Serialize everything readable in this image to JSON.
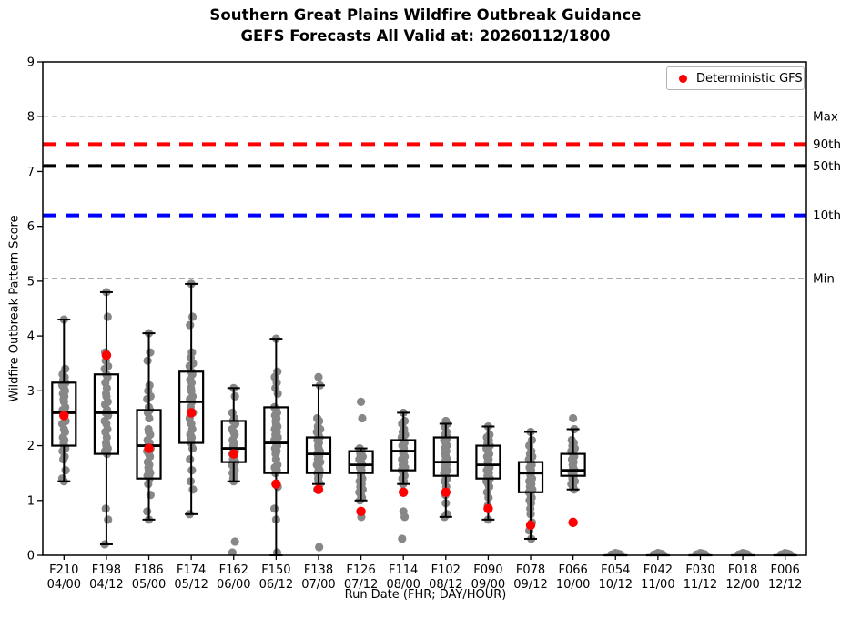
{
  "legend": {
    "label": "Deterministic GFS",
    "marker_color": "#ff0000"
  },
  "chart_data": {
    "type": "boxplot+scatter",
    "title": "Southern Great Plains Wildfire Outbreak Guidance",
    "subtitle": "GEFS Forecasts All Valid at: 20260112/1800",
    "xlabel": "Run Date (FHR; DAY/HOUR)",
    "ylabel": "Wildfire Outbreak Pattern Score",
    "ylim": [
      0,
      9
    ],
    "y_ticks": [
      0,
      1,
      2,
      3,
      4,
      5,
      6,
      7,
      8,
      9
    ],
    "grid": false,
    "legend_position": "upper right",
    "reference_lines": [
      {
        "label": "Max",
        "value": 8.0,
        "color": "#909090",
        "thick": false
      },
      {
        "label": "90th",
        "value": 7.5,
        "color": "#ff0000",
        "thick": true
      },
      {
        "label": "50th",
        "value": 7.1,
        "color": "#000000",
        "thick": true
      },
      {
        "label": "10th",
        "value": 6.2,
        "color": "#0000ff",
        "thick": true
      },
      {
        "label": "Min",
        "value": 5.05,
        "color": "#909090",
        "thick": false
      }
    ],
    "categories": [
      {
        "fhr": "F210",
        "date": "04/00"
      },
      {
        "fhr": "F198",
        "date": "04/12"
      },
      {
        "fhr": "F186",
        "date": "05/00"
      },
      {
        "fhr": "F174",
        "date": "05/12"
      },
      {
        "fhr": "F162",
        "date": "06/00"
      },
      {
        "fhr": "F150",
        "date": "06/12"
      },
      {
        "fhr": "F138",
        "date": "07/00"
      },
      {
        "fhr": "F126",
        "date": "07/12"
      },
      {
        "fhr": "F114",
        "date": "08/00"
      },
      {
        "fhr": "F102",
        "date": "08/12"
      },
      {
        "fhr": "F090",
        "date": "09/00"
      },
      {
        "fhr": "F078",
        "date": "09/12"
      },
      {
        "fhr": "F066",
        "date": "10/00"
      },
      {
        "fhr": "F054",
        "date": "10/12"
      },
      {
        "fhr": "F042",
        "date": "11/00"
      },
      {
        "fhr": "F030",
        "date": "11/12"
      },
      {
        "fhr": "F018",
        "date": "12/00"
      },
      {
        "fhr": "F006",
        "date": "12/12"
      }
    ],
    "boxes": [
      {
        "low": 1.35,
        "q1": 2.0,
        "median": 2.6,
        "q3": 3.15,
        "high": 4.3
      },
      {
        "low": 0.2,
        "q1": 1.85,
        "median": 2.6,
        "q3": 3.3,
        "high": 4.8
      },
      {
        "low": 0.65,
        "q1": 1.4,
        "median": 2.0,
        "q3": 2.65,
        "high": 4.05
      },
      {
        "low": 0.75,
        "q1": 2.05,
        "median": 2.8,
        "q3": 3.35,
        "high": 4.95
      },
      {
        "low": 1.35,
        "q1": 1.7,
        "median": 1.95,
        "q3": 2.45,
        "high": 3.05
      },
      {
        "low": 0.0,
        "q1": 1.5,
        "median": 2.05,
        "q3": 2.7,
        "high": 3.95
      },
      {
        "low": 1.3,
        "q1": 1.5,
        "median": 1.85,
        "q3": 2.15,
        "high": 3.1
      },
      {
        "low": 1.0,
        "q1": 1.5,
        "median": 1.65,
        "q3": 1.9,
        "high": 1.95
      },
      {
        "low": 1.3,
        "q1": 1.55,
        "median": 1.9,
        "q3": 2.1,
        "high": 2.6
      },
      {
        "low": 0.7,
        "q1": 1.45,
        "median": 1.7,
        "q3": 2.15,
        "high": 2.4
      },
      {
        "low": 0.65,
        "q1": 1.4,
        "median": 1.65,
        "q3": 2.0,
        "high": 2.35
      },
      {
        "low": 0.3,
        "q1": 1.15,
        "median": 1.5,
        "q3": 1.7,
        "high": 2.25
      },
      {
        "low": 1.2,
        "q1": 1.45,
        "median": 1.55,
        "q3": 1.85,
        "high": 2.3
      },
      {
        "low": 0.0,
        "q1": 0.0,
        "median": 0.0,
        "q3": 0.0,
        "high": 0.0
      },
      {
        "low": 0.0,
        "q1": 0.0,
        "median": 0.0,
        "q3": 0.0,
        "high": 0.0
      },
      {
        "low": 0.0,
        "q1": 0.0,
        "median": 0.0,
        "q3": 0.0,
        "high": 0.0
      },
      {
        "low": 0.0,
        "q1": 0.0,
        "median": 0.0,
        "q3": 0.0,
        "high": 0.0
      },
      {
        "low": 0.0,
        "q1": 0.0,
        "median": 0.0,
        "q3": 0.0,
        "high": 0.0
      }
    ],
    "ensemble_members": [
      [
        4.3,
        3.4,
        3.3,
        3.25,
        3.2,
        3.15,
        3.1,
        3.05,
        3.0,
        2.95,
        2.9,
        2.85,
        2.8,
        2.7,
        2.65,
        2.6,
        2.55,
        2.45,
        2.4,
        2.3,
        2.25,
        2.15,
        2.1,
        2.05,
        2.0,
        1.95,
        1.9,
        1.8,
        1.75,
        1.55,
        1.4,
        1.35
      ],
      [
        4.8,
        4.35,
        3.7,
        3.65,
        3.55,
        3.45,
        3.4,
        3.3,
        3.25,
        3.15,
        3.05,
        2.95,
        2.9,
        2.8,
        2.75,
        2.65,
        2.6,
        2.55,
        2.45,
        2.4,
        2.3,
        2.25,
        2.15,
        2.05,
        2.0,
        1.95,
        1.9,
        1.85,
        0.85,
        0.65,
        0.2
      ],
      [
        4.05,
        3.7,
        3.55,
        3.1,
        3.0,
        2.9,
        2.85,
        2.7,
        2.65,
        2.6,
        2.5,
        2.3,
        2.25,
        2.2,
        2.1,
        2.05,
        2.0,
        1.95,
        1.9,
        1.85,
        1.8,
        1.7,
        1.65,
        1.6,
        1.55,
        1.5,
        1.45,
        1.4,
        1.3,
        1.1,
        0.8,
        0.65
      ],
      [
        4.95,
        4.35,
        4.2,
        3.7,
        3.6,
        3.5,
        3.45,
        3.35,
        3.3,
        3.2,
        3.15,
        3.05,
        3.0,
        2.9,
        2.85,
        2.8,
        2.7,
        2.6,
        2.5,
        2.4,
        2.3,
        2.2,
        2.15,
        2.1,
        2.05,
        1.95,
        1.75,
        1.55,
        1.35,
        1.2,
        0.75
      ],
      [
        3.05,
        2.9,
        2.6,
        2.5,
        2.45,
        2.4,
        2.3,
        2.25,
        2.2,
        2.1,
        2.05,
        2.0,
        1.95,
        1.9,
        1.85,
        1.8,
        1.75,
        1.7,
        1.65,
        1.6,
        1.55,
        1.5,
        1.45,
        1.4,
        1.35,
        0.25,
        0.05
      ],
      [
        3.95,
        3.35,
        3.25,
        3.15,
        3.05,
        2.95,
        2.7,
        2.65,
        2.6,
        2.55,
        2.5,
        2.45,
        2.4,
        2.35,
        2.3,
        2.25,
        2.2,
        2.15,
        2.1,
        2.05,
        2.0,
        1.95,
        1.9,
        1.85,
        1.75,
        1.65,
        1.6,
        1.55,
        1.5,
        1.25,
        0.85,
        0.65,
        0.05
      ],
      [
        3.25,
        3.1,
        2.5,
        2.45,
        2.35,
        2.3,
        2.25,
        2.2,
        2.15,
        2.1,
        2.05,
        2.0,
        1.95,
        1.9,
        1.85,
        1.8,
        1.75,
        1.7,
        1.65,
        1.6,
        1.55,
        1.5,
        1.45,
        1.4,
        1.35,
        1.3,
        1.2,
        0.15
      ],
      [
        2.8,
        2.5,
        1.95,
        1.9,
        1.85,
        1.8,
        1.75,
        1.7,
        1.65,
        1.6,
        1.55,
        1.5,
        1.45,
        1.4,
        1.35,
        1.3,
        1.25,
        1.2,
        1.15,
        1.1,
        1.05,
        1.0,
        0.7
      ],
      [
        2.6,
        2.45,
        2.4,
        2.3,
        2.25,
        2.2,
        2.15,
        2.1,
        2.05,
        2.0,
        1.95,
        1.9,
        1.85,
        1.8,
        1.75,
        1.7,
        1.65,
        1.6,
        1.55,
        1.5,
        1.45,
        1.4,
        1.35,
        1.3,
        0.8,
        0.7,
        0.3
      ],
      [
        2.45,
        2.4,
        2.35,
        2.25,
        2.2,
        2.15,
        2.1,
        2.05,
        2.0,
        1.95,
        1.9,
        1.85,
        1.8,
        1.75,
        1.7,
        1.65,
        1.6,
        1.55,
        1.5,
        1.45,
        1.4,
        1.35,
        1.25,
        1.1,
        0.95,
        0.75,
        0.7
      ],
      [
        2.35,
        2.2,
        2.15,
        2.1,
        2.05,
        2.0,
        1.95,
        1.9,
        1.85,
        1.8,
        1.75,
        1.7,
        1.65,
        1.6,
        1.55,
        1.5,
        1.45,
        1.4,
        1.35,
        1.3,
        1.25,
        1.15,
        1.05,
        0.9,
        0.65
      ],
      [
        2.25,
        2.1,
        2.0,
        1.9,
        1.85,
        1.8,
        1.75,
        1.7,
        1.65,
        1.6,
        1.55,
        1.5,
        1.45,
        1.4,
        1.35,
        1.3,
        1.25,
        1.2,
        1.15,
        1.1,
        1.05,
        1.0,
        0.95,
        0.85,
        0.75,
        0.6,
        0.45,
        0.3
      ],
      [
        2.5,
        2.3,
        2.1,
        2.05,
        2.0,
        1.95,
        1.9,
        1.85,
        1.8,
        1.75,
        1.7,
        1.65,
        1.6,
        1.55,
        1.5,
        1.45,
        1.4,
        1.35,
        1.3,
        1.25,
        1.2
      ],
      [
        0.04,
        0.03,
        0.02,
        0.02,
        0.01,
        0.01,
        0.0,
        0.0
      ],
      [
        0.04,
        0.03,
        0.02,
        0.02,
        0.01,
        0.01,
        0.0,
        0.0
      ],
      [
        0.04,
        0.03,
        0.02,
        0.02,
        0.01,
        0.01,
        0.0,
        0.0
      ],
      [
        0.04,
        0.03,
        0.02,
        0.02,
        0.01,
        0.01,
        0.0,
        0.0
      ],
      [
        0.04,
        0.03,
        0.02,
        0.02,
        0.01,
        0.01,
        0.0,
        0.0
      ]
    ],
    "deterministic_gfs": [
      2.55,
      3.65,
      1.95,
      2.6,
      1.85,
      1.3,
      1.2,
      0.8,
      1.15,
      1.15,
      0.85,
      0.55,
      0.6,
      null,
      null,
      null,
      null,
      null
    ],
    "colors": {
      "ensemble_dot": "#878787",
      "gfs_dot": "#ff0000",
      "box": "#000000",
      "p90_line": "#ff0000",
      "p50_line": "#000000",
      "p10_line": "#0000ff",
      "minmax_line": "#909090"
    }
  }
}
